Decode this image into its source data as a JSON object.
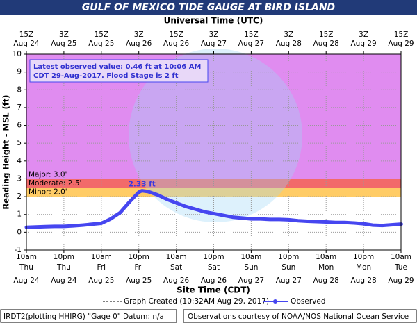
{
  "chart_data": {
    "type": "line",
    "title": "GULF OF MEXICO TIDE GAUGE AT BIRD ISLAND",
    "x2_label": "Universal Time (UTC)",
    "xlabel": "Site Time (CDT)",
    "ylabel": "Reading Height - MSL (ft)",
    "xlim": [
      "2017-08-24T10:00",
      "2017-08-29T10:00"
    ],
    "ylim": [
      -1,
      10
    ],
    "yticks": [
      -1,
      0,
      1,
      2,
      3,
      4,
      5,
      6,
      7,
      8,
      9,
      10
    ],
    "xticks": [
      {
        "value": "2017-08-24T10:00",
        "label": [
          "10am",
          "Thu",
          "Aug 24"
        ]
      },
      {
        "value": "2017-08-24T22:00",
        "label": [
          "10pm",
          "Thu",
          "Aug 24"
        ]
      },
      {
        "value": "2017-08-25T10:00",
        "label": [
          "10am",
          "Fri",
          "Aug 25"
        ]
      },
      {
        "value": "2017-08-25T22:00",
        "label": [
          "10pm",
          "Fri",
          "Aug 25"
        ]
      },
      {
        "value": "2017-08-26T10:00",
        "label": [
          "10am",
          "Sat",
          "Aug 26"
        ]
      },
      {
        "value": "2017-08-26T22:00",
        "label": [
          "10pm",
          "Sat",
          "Aug 26"
        ]
      },
      {
        "value": "2017-08-27T10:00",
        "label": [
          "10am",
          "Sun",
          "Aug 27"
        ]
      },
      {
        "value": "2017-08-27T22:00",
        "label": [
          "10pm",
          "Sun",
          "Aug 27"
        ]
      },
      {
        "value": "2017-08-28T10:00",
        "label": [
          "10am",
          "Mon",
          "Aug 28"
        ]
      },
      {
        "value": "2017-08-28T22:00",
        "label": [
          "10pm",
          "Mon",
          "Aug 28"
        ]
      },
      {
        "value": "2017-08-29T10:00",
        "label": [
          "10am",
          "Tue",
          "Aug 29"
        ]
      }
    ],
    "x2ticks": [
      {
        "value": "2017-08-24T10:00",
        "label": [
          "15Z",
          "Aug 24"
        ]
      },
      {
        "value": "2017-08-24T22:00",
        "label": [
          "3Z",
          "Aug 25"
        ]
      },
      {
        "value": "2017-08-25T10:00",
        "label": [
          "15Z",
          "Aug 25"
        ]
      },
      {
        "value": "2017-08-25T22:00",
        "label": [
          "3Z",
          "Aug 26"
        ]
      },
      {
        "value": "2017-08-26T10:00",
        "label": [
          "15Z",
          "Aug 26"
        ]
      },
      {
        "value": "2017-08-26T22:00",
        "label": [
          "3Z",
          "Aug 27"
        ]
      },
      {
        "value": "2017-08-27T10:00",
        "label": [
          "15Z",
          "Aug 27"
        ]
      },
      {
        "value": "2017-08-27T22:00",
        "label": [
          "3Z",
          "Aug 28"
        ]
      },
      {
        "value": "2017-08-28T10:00",
        "label": [
          "15Z",
          "Aug 28"
        ]
      },
      {
        "value": "2017-08-28T22:00",
        "label": [
          "3Z",
          "Aug 29"
        ]
      },
      {
        "value": "2017-08-29T10:00",
        "label": [
          "15Z",
          "Aug 29"
        ]
      }
    ],
    "grid": true,
    "flood_stages": [
      {
        "label": "Major: 3.0'",
        "value": 3.0,
        "color": "#e08cf0"
      },
      {
        "label": "Moderate: 2.5'",
        "value": 2.5,
        "color": "#f26a6a"
      },
      {
        "label": "Minor: 2.0'",
        "value": 2.0,
        "color": "#ffcc66"
      }
    ],
    "x": [
      "2017-08-24T10:00",
      "2017-08-24T13:00",
      "2017-08-24T16:00",
      "2017-08-24T19:00",
      "2017-08-24T22:00",
      "2017-08-25T01:00",
      "2017-08-25T04:00",
      "2017-08-25T07:00",
      "2017-08-25T10:00",
      "2017-08-25T13:00",
      "2017-08-25T16:00",
      "2017-08-25T19:00",
      "2017-08-25T22:00",
      "2017-08-25T23:00",
      "2017-08-26T01:00",
      "2017-08-26T04:00",
      "2017-08-26T07:00",
      "2017-08-26T10:00",
      "2017-08-26T13:00",
      "2017-08-26T16:00",
      "2017-08-26T19:00",
      "2017-08-26T22:00",
      "2017-08-27T01:00",
      "2017-08-27T04:00",
      "2017-08-27T07:00",
      "2017-08-27T10:00",
      "2017-08-27T13:00",
      "2017-08-27T16:00",
      "2017-08-27T19:00",
      "2017-08-27T22:00",
      "2017-08-28T01:00",
      "2017-08-28T04:00",
      "2017-08-28T07:00",
      "2017-08-28T10:00",
      "2017-08-28T13:00",
      "2017-08-28T16:00",
      "2017-08-28T19:00",
      "2017-08-28T22:00",
      "2017-08-29T01:00",
      "2017-08-29T04:00",
      "2017-08-29T07:00",
      "2017-08-29T10:06"
    ],
    "series": [
      {
        "name": "Observed",
        "color": "#4646f0",
        "values": [
          0.28,
          0.3,
          0.32,
          0.33,
          0.33,
          0.36,
          0.4,
          0.45,
          0.5,
          0.75,
          1.1,
          1.7,
          2.25,
          2.33,
          2.28,
          2.1,
          1.85,
          1.65,
          1.45,
          1.3,
          1.15,
          1.05,
          0.95,
          0.85,
          0.8,
          0.75,
          0.75,
          0.72,
          0.72,
          0.7,
          0.65,
          0.62,
          0.6,
          0.58,
          0.55,
          0.55,
          0.52,
          0.48,
          0.4,
          0.38,
          0.42,
          0.46
        ]
      }
    ],
    "annotations": [
      {
        "text": "2.33 ft",
        "x": "2017-08-25T23:00",
        "y": 2.33
      }
    ],
    "info_box": [
      "Latest observed value: 0.46 ft at 10:06 AM",
      "CDT 29-Aug-2017. Flood Stage is 2 ft"
    ],
    "legend": {
      "created": "Graph Created (10:32AM Aug 29, 2017)"
    },
    "footer": [
      "IRDT2(plotting HHIRG) \"Gage 0\" Datum: n/a",
      "Observations courtesy of NOAA/NOS National Ocean Service"
    ]
  }
}
